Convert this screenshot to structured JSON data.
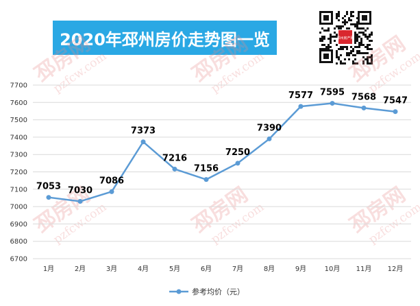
{
  "banner": {
    "title": "2020年邳州房价走势图一览"
  },
  "qr": {
    "badge": "邳州房产网"
  },
  "watermark": {
    "brand": "邳房网",
    "url": "pzfcw.com"
  },
  "colors": {
    "banner": "#2aa8e4",
    "line": "#5b9bd5",
    "grid": "#d9d9d9"
  },
  "chart_data": {
    "type": "line",
    "categories": [
      "1月",
      "2月",
      "3月",
      "4月",
      "5月",
      "6月",
      "7月",
      "8月",
      "9月",
      "10月",
      "11月",
      "12月"
    ],
    "series": [
      {
        "name": "参考均价（元）",
        "values": [
          7053,
          7030,
          7086,
          7373,
          7216,
          7156,
          7250,
          7390,
          7577,
          7595,
          7568,
          7547
        ]
      }
    ],
    "ylim": [
      6700,
      7700
    ],
    "yticks": [
      6700,
      6800,
      6900,
      7000,
      7100,
      7200,
      7300,
      7400,
      7500,
      7600,
      7700
    ],
    "grid": true,
    "legend": "bottom",
    "data_labels": true
  }
}
